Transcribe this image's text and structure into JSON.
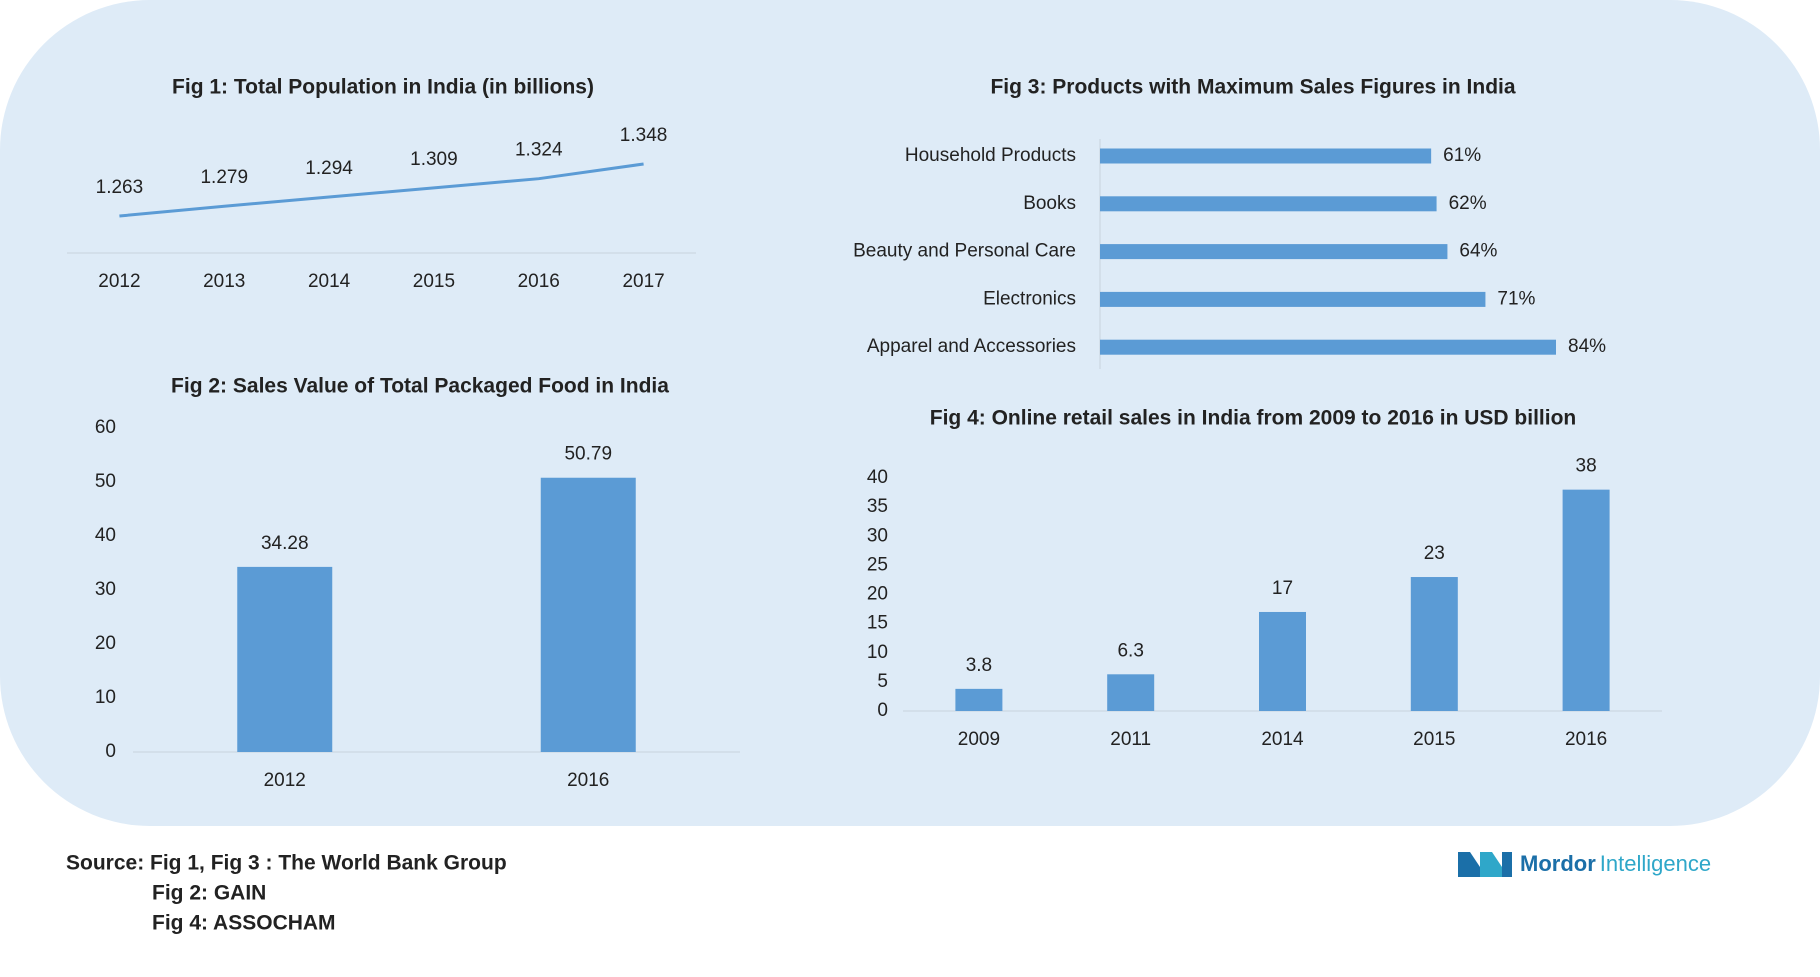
{
  "chart_data": [
    {
      "type": "line",
      "title": "Fig 1: Total Population  in India (in billions)",
      "categories": [
        "2012",
        "2013",
        "2014",
        "2015",
        "2016",
        "2017"
      ],
      "values": [
        1.263,
        1.279,
        1.294,
        1.309,
        1.324,
        1.348
      ],
      "color": "#5b9bd5"
    },
    {
      "type": "bar",
      "title": "Fig 2: Sales Value of Total Packaged Food  in India",
      "categories": [
        "2012",
        "2016"
      ],
      "values": [
        34.28,
        50.79
      ],
      "color": "#5b9bd5",
      "ylim": [
        0,
        60
      ],
      "yticks": [
        0,
        10,
        20,
        30,
        40,
        50,
        60
      ]
    },
    {
      "type": "bar",
      "orientation": "horizontal",
      "title": "Fig 3: Products with Maximum Sales Figures in India",
      "categories": [
        "Household Products",
        "Books",
        "Beauty and Personal Care",
        "Electronics",
        "Apparel and Accessories"
      ],
      "values": [
        61,
        62,
        64,
        71,
        84
      ],
      "value_labels": [
        "61%",
        "62%",
        "64%",
        "71%",
        "84%"
      ],
      "color": "#5b9bd5"
    },
    {
      "type": "bar",
      "title": "Fig 4: Online retail sales in India from 2009 to 2016 in USD billion",
      "categories": [
        "2009",
        "2011",
        "2014",
        "2015",
        "2016"
      ],
      "values": [
        3.8,
        6.3,
        17,
        23,
        38
      ],
      "color": "#5b9bd5",
      "ylim": [
        0,
        40
      ],
      "yticks": [
        0,
        5,
        10,
        15,
        20,
        25,
        30,
        35,
        40
      ]
    }
  ],
  "source": [
    "Source: Fig 1, Fig 3 : The World Bank Group",
    "Fig 2: GAIN",
    "Fig 4: ASSOCHAM"
  ],
  "logo": [
    "Mordor",
    "Intelligence"
  ]
}
